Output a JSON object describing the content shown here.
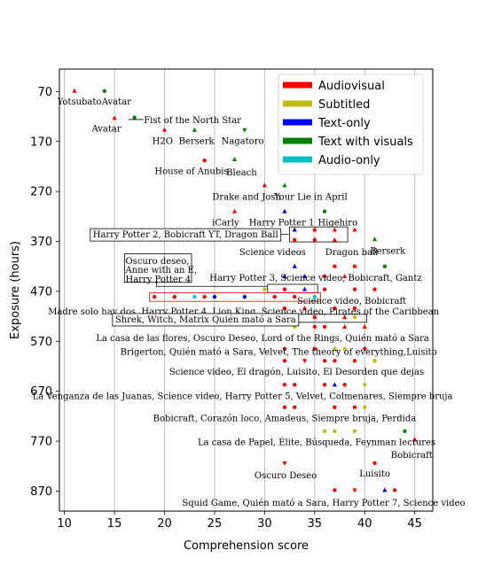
{
  "chart_data": {
    "type": "scatter",
    "title": "",
    "xlabel": "Comprehension score",
    "ylabel": "Exposure (hours)",
    "xlim": [
      9.5,
      46.8
    ],
    "ylim": [
      910,
      25
    ],
    "y_inverted": true,
    "x_ticks": [
      10,
      15,
      20,
      25,
      30,
      35,
      40,
      45
    ],
    "y_ticks": [
      70,
      170,
      270,
      370,
      470,
      570,
      670,
      770,
      870
    ],
    "grid": "vertical",
    "legend_position": "top-right",
    "series": [
      {
        "name": "Audiovisual",
        "color": "#ff0000"
      },
      {
        "name": "Subtitled",
        "color": "#bfbf00"
      },
      {
        "name": "Text-only",
        "color": "#0000ff"
      },
      {
        "name": "Text with visuals",
        "color": "#008000"
      },
      {
        "name": "Audio-only",
        "color": "#00bfbf"
      }
    ],
    "points": [
      {
        "x": 11,
        "y": 69,
        "m": "^",
        "c": "#ff0000"
      },
      {
        "x": 14,
        "y": 69,
        "m": "o",
        "c": "#008000"
      },
      {
        "x": 15,
        "y": 123,
        "m": "^",
        "c": "#ff0000"
      },
      {
        "x": 17,
        "y": 122,
        "m": "o",
        "c": "#008000"
      },
      {
        "x": 20,
        "y": 147,
        "m": "^",
        "c": "#ff0000"
      },
      {
        "x": 23,
        "y": 147,
        "m": "^",
        "c": "#008000"
      },
      {
        "x": 28,
        "y": 147,
        "m": "v",
        "c": "#008000"
      },
      {
        "x": 24,
        "y": 208,
        "m": "o",
        "c": "#ff0000"
      },
      {
        "x": 27,
        "y": 206,
        "m": "^",
        "c": "#008000"
      },
      {
        "x": 30,
        "y": 258,
        "m": "^",
        "c": "#ff0000"
      },
      {
        "x": 32,
        "y": 258,
        "m": "^",
        "c": "#008000"
      },
      {
        "x": 27,
        "y": 310,
        "m": "^",
        "c": "#ff0000"
      },
      {
        "x": 32,
        "y": 310,
        "m": "^",
        "c": "#0000ff"
      },
      {
        "x": 36,
        "y": 310,
        "m": "o",
        "c": "#008000"
      },
      {
        "x": 33,
        "y": 347,
        "m": "^",
        "c": "#0000ff"
      },
      {
        "x": 35,
        "y": 347,
        "m": "o",
        "c": "#ff0000"
      },
      {
        "x": 37,
        "y": 347,
        "m": "^",
        "c": "#ff0000"
      },
      {
        "x": 39,
        "y": 347,
        "m": "^",
        "c": "#ff0000"
      },
      {
        "x": 33,
        "y": 367,
        "m": "o",
        "c": "#ff0000"
      },
      {
        "x": 35,
        "y": 367,
        "m": "o",
        "c": "#ff0000"
      },
      {
        "x": 37,
        "y": 367,
        "m": "^",
        "c": "#ff0000"
      },
      {
        "x": 41,
        "y": 366,
        "m": "^",
        "c": "#008000"
      },
      {
        "x": 33,
        "y": 420,
        "m": "^",
        "c": "#0000ff"
      },
      {
        "x": 37,
        "y": 420,
        "m": "o",
        "c": "#ff0000"
      },
      {
        "x": 39,
        "y": 420,
        "m": "o",
        "c": "#ff0000"
      },
      {
        "x": 42,
        "y": 420,
        "m": "o",
        "c": "#008000"
      },
      {
        "x": 32,
        "y": 440,
        "m": "^",
        "c": "#0000ff"
      },
      {
        "x": 34,
        "y": 440,
        "m": "^",
        "c": "#0000ff"
      },
      {
        "x": 36,
        "y": 440,
        "m": "o",
        "c": "#ff0000"
      },
      {
        "x": 38,
        "y": 440,
        "m": "^",
        "c": "#ff0000"
      },
      {
        "x": 30,
        "y": 466,
        "m": "o",
        "c": "#bfbf00"
      },
      {
        "x": 32,
        "y": 466,
        "m": "o",
        "c": "#ff0000"
      },
      {
        "x": 34,
        "y": 466,
        "m": "^",
        "c": "#0000ff"
      },
      {
        "x": 36,
        "y": 466,
        "m": "o",
        "c": "#ff0000"
      },
      {
        "x": 39,
        "y": 466,
        "m": "o",
        "c": "#ff0000"
      },
      {
        "x": 41,
        "y": 466,
        "m": "o",
        "c": "#ff0000"
      },
      {
        "x": 19,
        "y": 481,
        "m": "o",
        "c": "#ff0000"
      },
      {
        "x": 21,
        "y": 481,
        "m": "o",
        "c": "#ff0000"
      },
      {
        "x": 23,
        "y": 481,
        "m": "o",
        "c": "#00bfbf"
      },
      {
        "x": 24,
        "y": 481,
        "m": "o",
        "c": "#ff0000"
      },
      {
        "x": 25,
        "y": 481,
        "m": "o",
        "c": "#0000ff"
      },
      {
        "x": 28,
        "y": 481,
        "m": "o",
        "c": "#0000ff"
      },
      {
        "x": 31,
        "y": 481,
        "m": "o",
        "c": "#ff0000"
      },
      {
        "x": 33,
        "y": 481,
        "m": "o",
        "c": "#ff0000"
      },
      {
        "x": 35,
        "y": 481,
        "m": "o",
        "c": "#00bfbf"
      },
      {
        "x": 32,
        "y": 504,
        "m": "o",
        "c": "#ff0000"
      },
      {
        "x": 34,
        "y": 504,
        "m": "^",
        "c": "#ff0000"
      },
      {
        "x": 37,
        "y": 504,
        "m": "o",
        "c": "#ff0000"
      },
      {
        "x": 39,
        "y": 504,
        "m": "o",
        "c": "#ff0000"
      },
      {
        "x": 33,
        "y": 522,
        "m": "v",
        "c": "#ff0000"
      },
      {
        "x": 35,
        "y": 522,
        "m": "o",
        "c": "#ff0000"
      },
      {
        "x": 38,
        "y": 522,
        "m": "^",
        "c": "#ff0000"
      },
      {
        "x": 39,
        "y": 522,
        "m": "o",
        "c": "#bfbf00"
      },
      {
        "x": 33,
        "y": 541,
        "m": "o",
        "c": "#bfbf00"
      },
      {
        "x": 35,
        "y": 541,
        "m": "o",
        "c": "#ff0000"
      },
      {
        "x": 36,
        "y": 541,
        "m": "o",
        "c": "#ff0000"
      },
      {
        "x": 38,
        "y": 541,
        "m": "^",
        "c": "#ff0000"
      },
      {
        "x": 40,
        "y": 541,
        "m": "^",
        "c": "#ff0000"
      },
      {
        "x": 32,
        "y": 585,
        "m": "o",
        "c": "#ff0000"
      },
      {
        "x": 35,
        "y": 585,
        "m": "o",
        "c": "#ff0000"
      },
      {
        "x": 37,
        "y": 585,
        "m": "o",
        "c": "#bfbf00"
      },
      {
        "x": 38,
        "y": 585,
        "m": "o",
        "c": "#bfbf00"
      },
      {
        "x": 40,
        "y": 585,
        "m": "o",
        "c": "#ff0000"
      },
      {
        "x": 32,
        "y": 609,
        "m": "o",
        "c": "#ff0000"
      },
      {
        "x": 34,
        "y": 609,
        "m": "v",
        "c": "#ff0000"
      },
      {
        "x": 36,
        "y": 609,
        "m": "o",
        "c": "#ff0000"
      },
      {
        "x": 37,
        "y": 609,
        "m": "o",
        "c": "#ff0000"
      },
      {
        "x": 39,
        "y": 609,
        "m": "o",
        "c": "#ff0000"
      },
      {
        "x": 41,
        "y": 609,
        "m": "o",
        "c": "#bfbf00"
      },
      {
        "x": 32,
        "y": 657,
        "m": "o",
        "c": "#ff0000"
      },
      {
        "x": 33,
        "y": 657,
        "m": "o",
        "c": "#ff0000"
      },
      {
        "x": 36,
        "y": 657,
        "m": "o",
        "c": "#ff0000"
      },
      {
        "x": 37,
        "y": 657,
        "m": "^",
        "c": "#0000ff"
      },
      {
        "x": 38,
        "y": 657,
        "m": "o",
        "c": "#ff0000"
      },
      {
        "x": 40,
        "y": 657,
        "m": "o",
        "c": "#bfbf00"
      },
      {
        "x": 32,
        "y": 702,
        "m": "o",
        "c": "#ff0000"
      },
      {
        "x": 33,
        "y": 702,
        "m": "o",
        "c": "#ff0000"
      },
      {
        "x": 37,
        "y": 702,
        "m": "o",
        "c": "#ff0000"
      },
      {
        "x": 39,
        "y": 702,
        "m": "o",
        "c": "#ff0000"
      },
      {
        "x": 40,
        "y": 702,
        "m": "o",
        "c": "#bfbf00"
      },
      {
        "x": 36,
        "y": 750,
        "m": "o",
        "c": "#bfbf00"
      },
      {
        "x": 37,
        "y": 750,
        "m": "o",
        "c": "#bfbf00"
      },
      {
        "x": 39,
        "y": 750,
        "m": "o",
        "c": "#bfbf00"
      },
      {
        "x": 44,
        "y": 750,
        "m": "o",
        "c": "#008000"
      },
      {
        "x": 45,
        "y": 767,
        "m": "^",
        "c": "#ff0000"
      },
      {
        "x": 32,
        "y": 814,
        "m": "v",
        "c": "#ff0000"
      },
      {
        "x": 41,
        "y": 814,
        "m": "o",
        "c": "#ff0000"
      },
      {
        "x": 37,
        "y": 868,
        "m": "o",
        "c": "#ff0000"
      },
      {
        "x": 39,
        "y": 868,
        "m": "v",
        "c": "#ff0000"
      },
      {
        "x": 42,
        "y": 868,
        "m": "^",
        "c": "#0000ff"
      },
      {
        "x": 43,
        "y": 868,
        "m": "o",
        "c": "#ff0000"
      }
    ],
    "annotations": [
      {
        "text": "Yotsubato",
        "x": 11.5,
        "y": 90,
        "box": false
      },
      {
        "text": "Avatar",
        "x": 15.2,
        "y": 90,
        "box": false
      },
      {
        "text": "Fist of the North Star",
        "x": 22.8,
        "y": 127,
        "box": false
      },
      {
        "text": "Avatar",
        "x": 14.2,
        "y": 144,
        "box": false
      },
      {
        "text": "H2O",
        "x": 19.8,
        "y": 169,
        "box": false
      },
      {
        "text": "Berserk",
        "x": 23.2,
        "y": 169,
        "box": false
      },
      {
        "text": "Nagatoro",
        "x": 27.8,
        "y": 169,
        "box": false
      },
      {
        "text": "House of Anubis",
        "x": 22.7,
        "y": 229,
        "box": false
      },
      {
        "text": "Bleach",
        "x": 27.7,
        "y": 232,
        "box": false
      },
      {
        "text": "Drake and Josh",
        "x": 28.2,
        "y": 280,
        "box": false
      },
      {
        "text": "Your Lie in April",
        "x": 34.6,
        "y": 280,
        "box": false
      },
      {
        "text": "iCarly",
        "x": 26.1,
        "y": 332,
        "box": false
      },
      {
        "text": "Harry Potter 1",
        "x": 31.7,
        "y": 332,
        "box": false
      },
      {
        "text": "Higehiro",
        "x": 37.3,
        "y": 332,
        "box": false
      },
      {
        "text": "Harry Potter 2, Bobicraft YT, Dragon Ball",
        "x": 22.1,
        "y": 356,
        "box": true
      },
      {
        "text": "Science videos",
        "x": 30.8,
        "y": 391,
        "box": false
      },
      {
        "text": "Dragon ball",
        "x": 38.7,
        "y": 391,
        "box": false
      },
      {
        "text": "Berserk",
        "x": 42.3,
        "y": 389,
        "box": false
      },
      {
        "text": "Oscuro deseo,",
        "x": 16.1,
        "y": 409,
        "box": false,
        "align": "start"
      },
      {
        "text": "Anne with an E,",
        "x": 16.1,
        "y": 427,
        "box": false,
        "align": "start"
      },
      {
        "text": "Harry Potter 4",
        "x": 16.1,
        "y": 445,
        "box": false,
        "align": "start"
      },
      {
        "text": "Harry Potter 3, Science video, Bobicraft, Gantz",
        "x": 35.1,
        "y": 443,
        "box": false
      },
      {
        "text": "Science video, Bobicraft",
        "x": 38.7,
        "y": 489,
        "box": false
      },
      {
        "text": "Madre solo hay dos, Harry Potter 4, Lion King, Science video, Pirates of the Caribbean",
        "x": 27.9,
        "y": 510,
        "box": false
      },
      {
        "text": "Shrek, Witch, Matrix Quién mató a Sara",
        "x": 24.1,
        "y": 526,
        "box": true
      },
      {
        "text": "La casa de las flores, Oscuro Deseo, Lord of the Rings, Quién mató a Sara",
        "x": 29.8,
        "y": 563,
        "box": false
      },
      {
        "text": "Brigerton, Quién mató a Sara, Velvet, The theory of everything,Luisito",
        "x": 31.4,
        "y": 591,
        "box": false
      },
      {
        "text": "Science video, El dragón, Luisito, El Desorden que dejas",
        "x": 33.2,
        "y": 631,
        "box": false
      },
      {
        "text": "La Venganza de las Juanas, Science video, Harry Potter 5, Velvet, Colmenares, Siempre bruja",
        "x": 27.8,
        "y": 679,
        "box": false
      },
      {
        "text": "Bobicraft, Corazón loco, Amadeus, Siempre bruja, Perdida",
        "x": 32.0,
        "y": 724,
        "box": false
      },
      {
        "text": "La casa de Papel, Élite, Búsqueda, Feynman lectures",
        "x": 35.2,
        "y": 772,
        "box": false
      },
      {
        "text": "Bobicraft",
        "x": 44.7,
        "y": 797,
        "box": false
      },
      {
        "text": "Oscuro Deseo",
        "x": 32.1,
        "y": 838,
        "box": false
      },
      {
        "text": "Luisito",
        "x": 41.0,
        "y": 835,
        "box": false
      },
      {
        "text": "Squid Game, Quién mató a Sara, Harry Potter 7, Science video",
        "x": 35.9,
        "y": 893,
        "box": false
      }
    ]
  }
}
